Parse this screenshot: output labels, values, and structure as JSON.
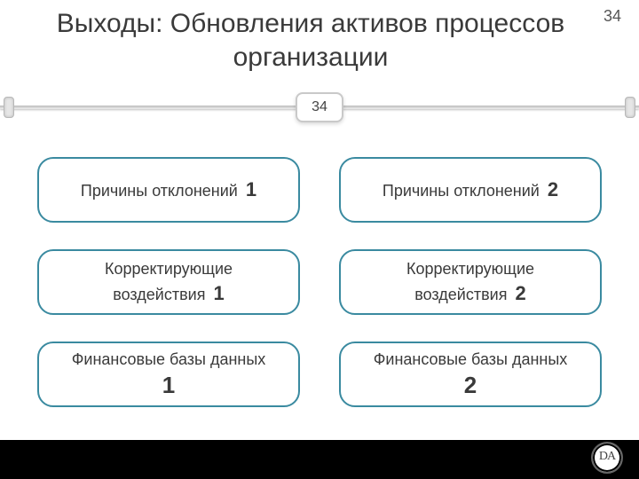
{
  "page_number_top": "34",
  "center_badge": "34",
  "title": "Выходы: Обновления активов процессов организации",
  "colors": {
    "box_border": "#3a8aa0",
    "title_color": "#3a3a3a",
    "footer_bg": "#000000",
    "background": "#ffffff"
  },
  "layout": {
    "type": "infographic",
    "grid_rows": 3,
    "grid_cols": 2,
    "box_border_radius": 18,
    "box_border_width": 2.5
  },
  "boxes": [
    {
      "text": "Причины отклонений",
      "num": "1",
      "style": "inline"
    },
    {
      "text": "Причины отклонений",
      "num": "2",
      "style": "inline"
    },
    {
      "text": "Корректирующие",
      "text2": "воздействия",
      "num": "1",
      "style": "two-line"
    },
    {
      "text": "Корректирующие",
      "text2": "воздействия",
      "num": "2",
      "style": "two-line"
    },
    {
      "text": "Финансовые базы данных",
      "num": "1",
      "style": "stacked"
    },
    {
      "text": "Финансовые базы данных",
      "num": "2",
      "style": "stacked"
    }
  ],
  "logo_text": "DA"
}
